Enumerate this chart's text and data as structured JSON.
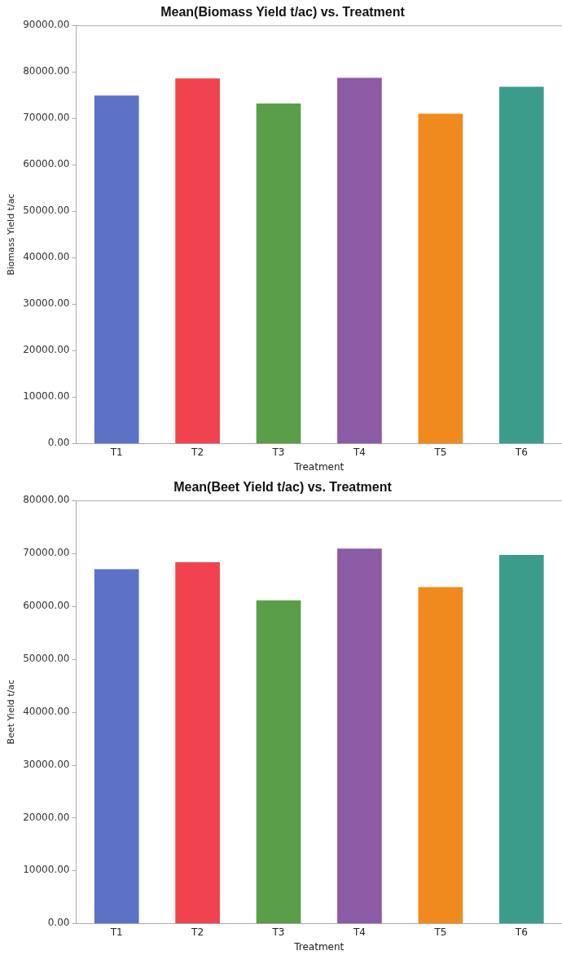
{
  "chart_data": [
    {
      "type": "bar",
      "title": "Mean(Biomass Yield t/ac) vs. Treatment",
      "xlabel": "Treatment",
      "ylabel": "Biomass Yield t/ac",
      "categories": [
        "T1",
        "T2",
        "T3",
        "T4",
        "T5",
        "T6"
      ],
      "values": [
        74900,
        78600,
        73200,
        78700,
        71000,
        76800
      ],
      "colors": [
        "#5b72c6",
        "#f0434f",
        "#5b9e4a",
        "#8c5ba6",
        "#f08a1e",
        "#3b9c8c"
      ],
      "ylim": [
        0,
        90000
      ],
      "yticks": [
        {
          "value": 0,
          "label": "0.00"
        },
        {
          "value": 10000,
          "label": "10000.00"
        },
        {
          "value": 20000,
          "label": "20000.00"
        },
        {
          "value": 30000,
          "label": "30000.00"
        },
        {
          "value": 40000,
          "label": "40000.00"
        },
        {
          "value": 50000,
          "label": "50000.00"
        },
        {
          "value": 60000,
          "label": "60000.00"
        },
        {
          "value": 70000,
          "label": "70000.00"
        },
        {
          "value": 80000,
          "label": "80000.00"
        },
        {
          "value": 90000,
          "label": "90000.00"
        }
      ],
      "grid": false
    },
    {
      "type": "bar",
      "title": "Mean(Beet Yield t/ac) vs. Treatment",
      "xlabel": "Treatment",
      "ylabel": "Beet Yield t/ac",
      "categories": [
        "T1",
        "T2",
        "T3",
        "T4",
        "T5",
        "T6"
      ],
      "values": [
        67000,
        68300,
        61100,
        70900,
        63600,
        69700
      ],
      "colors": [
        "#5b72c6",
        "#f0434f",
        "#5b9e4a",
        "#8c5ba6",
        "#f08a1e",
        "#3b9c8c"
      ],
      "ylim": [
        0,
        80000
      ],
      "yticks": [
        {
          "value": 0,
          "label": "0.00"
        },
        {
          "value": 10000,
          "label": "10000.00"
        },
        {
          "value": 20000,
          "label": "20000.00"
        },
        {
          "value": 30000,
          "label": "30000.00"
        },
        {
          "value": 40000,
          "label": "40000.00"
        },
        {
          "value": 50000,
          "label": "50000.00"
        },
        {
          "value": 60000,
          "label": "60000.00"
        },
        {
          "value": 70000,
          "label": "70000.00"
        },
        {
          "value": 80000,
          "label": "80000.00"
        }
      ],
      "grid": false
    }
  ]
}
